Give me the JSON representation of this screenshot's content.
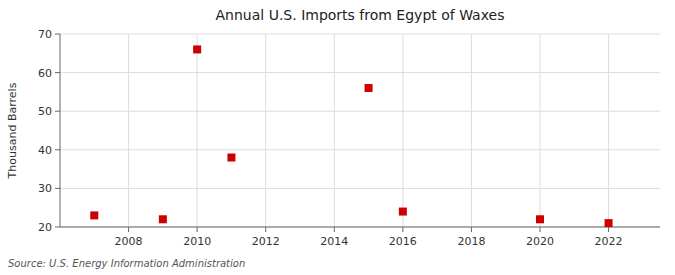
{
  "chart_data": {
    "type": "scatter",
    "title": "Annual U.S. Imports from Egypt of Waxes",
    "ylabel": "Thousand Barrels",
    "source": "Source: U.S. Energy Information Administration",
    "x": [
      2007,
      2009,
      2010,
      2011,
      2015,
      2016,
      2020,
      2022
    ],
    "values": [
      23,
      22,
      66,
      38,
      56,
      24,
      22,
      21
    ],
    "color": "#cc0000",
    "marker": "square",
    "xlim": [
      2006.0,
      2023.5
    ],
    "ylim": [
      20,
      70
    ],
    "xticks": [
      2008,
      2010,
      2012,
      2014,
      2016,
      2018,
      2020,
      2022
    ],
    "yticks": [
      20,
      30,
      40,
      50,
      60,
      70
    ],
    "grid": true
  }
}
